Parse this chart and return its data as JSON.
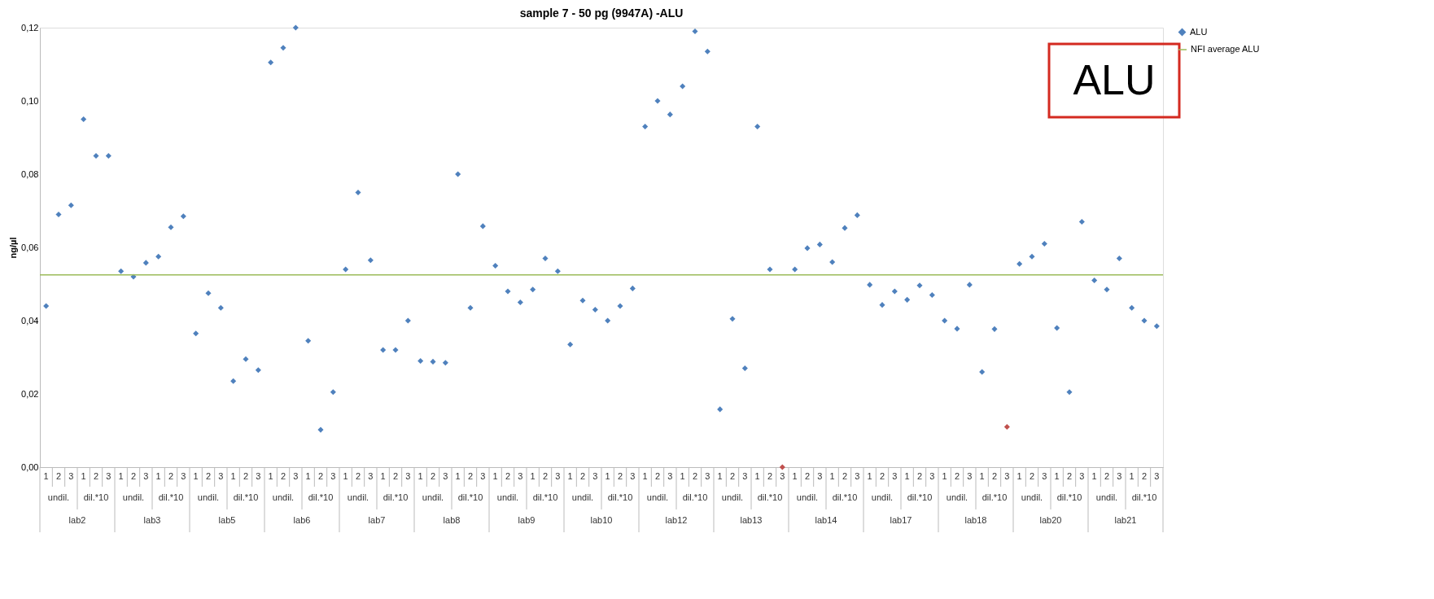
{
  "chart_data": {
    "type": "scatter",
    "title": "sample 7 - 50 pg (9947A) -ALU",
    "ylabel": "ng/µl",
    "categories": [
      "1",
      "2",
      "3",
      "1",
      "2",
      "3",
      "1",
      "2",
      "3",
      "1",
      "2",
      "3",
      "1",
      "2",
      "3",
      "1",
      "2",
      "3",
      "1",
      "2",
      "3",
      "1",
      "2",
      "3",
      "1",
      "2",
      "3",
      "1",
      "2",
      "3",
      "1",
      "2",
      "3",
      "1",
      "2",
      "3",
      "1",
      "2",
      "3",
      "1",
      "2",
      "3",
      "1",
      "2",
      "3",
      "1",
      "2",
      "3",
      "1",
      "2",
      "3",
      "1",
      "2",
      "3",
      "1",
      "2",
      "3",
      "1",
      "2",
      "3",
      "1",
      "2",
      "3",
      "1",
      "2",
      "3",
      "1",
      "2",
      "3",
      "1",
      "2",
      "3",
      "1",
      "2",
      "3",
      "1",
      "2",
      "3",
      "1",
      "2",
      "3",
      "1",
      "2",
      "3",
      "1",
      "2",
      "3",
      "1",
      "2",
      "3"
    ],
    "series": [
      {
        "name": "ALU",
        "color": "#4f81bd",
        "values": [
          0.044,
          0.069,
          0.0715,
          0.095,
          0.085,
          0.085,
          0.0535,
          0.052,
          0.0558,
          0.0575,
          0.0655,
          0.0685,
          0.0365,
          0.0475,
          0.0435,
          0.0235,
          0.0295,
          0.0265,
          0.1105,
          0.1145,
          0.12,
          0.0345,
          0.0102,
          0.0205,
          0.054,
          0.075,
          0.0565,
          0.032,
          0.032,
          0.04,
          0.029,
          0.0288,
          0.0285,
          0.08,
          0.0435,
          0.0658,
          0.055,
          0.048,
          0.045,
          0.0485,
          0.057,
          0.0535,
          0.0335,
          0.0455,
          0.043,
          0.04,
          0.044,
          0.0488,
          0.093,
          0.1,
          0.0963,
          0.104,
          0.119,
          0.1135,
          0.0158,
          0.0405,
          0.027,
          0.093,
          0.054,
          0.0,
          0.054,
          0.0598,
          0.0608,
          0.056,
          0.0653,
          0.0688,
          0.0498,
          0.0443,
          0.048,
          0.0457,
          0.0496,
          0.047,
          0.04,
          0.0378,
          0.0498,
          0.026,
          0.0377,
          0.011,
          0.0555,
          0.0575,
          0.061,
          0.038,
          0.0205,
          0.067,
          0.051,
          0.0485,
          0.057,
          0.0435,
          0.04,
          0.0385
        ],
        "colors": [
          "#4f81bd",
          "#4f81bd",
          "#4f81bd",
          "#4f81bd",
          "#4f81bd",
          "#4f81bd",
          "#4f81bd",
          "#4f81bd",
          "#4f81bd",
          "#4f81bd",
          "#4f81bd",
          "#4f81bd",
          "#4f81bd",
          "#4f81bd",
          "#4f81bd",
          "#4f81bd",
          "#4f81bd",
          "#4f81bd",
          "#4f81bd",
          "#4f81bd",
          "#4f81bd",
          "#4f81bd",
          "#4f81bd",
          "#4f81bd",
          "#4f81bd",
          "#4f81bd",
          "#4f81bd",
          "#4f81bd",
          "#4f81bd",
          "#4f81bd",
          "#4f81bd",
          "#4f81bd",
          "#4f81bd",
          "#4f81bd",
          "#4f81bd",
          "#4f81bd",
          "#4f81bd",
          "#4f81bd",
          "#4f81bd",
          "#4f81bd",
          "#4f81bd",
          "#4f81bd",
          "#4f81bd",
          "#4f81bd",
          "#4f81bd",
          "#4f81bd",
          "#4f81bd",
          "#4f81bd",
          "#4f81bd",
          "#4f81bd",
          "#4f81bd",
          "#4f81bd",
          "#4f81bd",
          "#4f81bd",
          "#4f81bd",
          "#4f81bd",
          "#4f81bd",
          "#4f81bd",
          "#4f81bd",
          "#c0504d",
          "#4f81bd",
          "#4f81bd",
          "#4f81bd",
          "#4f81bd",
          "#4f81bd",
          "#4f81bd",
          "#4f81bd",
          "#4f81bd",
          "#4f81bd",
          "#4f81bd",
          "#4f81bd",
          "#4f81bd",
          "#4f81bd",
          "#4f81bd",
          "#4f81bd",
          "#4f81bd",
          "#4f81bd",
          "#c0504d",
          "#4f81bd",
          "#4f81bd",
          "#4f81bd",
          "#4f81bd",
          "#4f81bd",
          "#4f81bd",
          "#4f81bd",
          "#4f81bd",
          "#4f81bd",
          "#4f81bd",
          "#4f81bd",
          "#4f81bd"
        ]
      }
    ],
    "ylim": [
      0,
      0.12
    ],
    "yticks": [
      {
        "value": 0,
        "label": "0,00"
      },
      {
        "value": 0.02,
        "label": "0,02"
      },
      {
        "value": 0.04,
        "label": "0,04"
      },
      {
        "value": 0.06,
        "label": "0,06"
      },
      {
        "value": 0.08,
        "label": "0,08"
      },
      {
        "value": 0.1,
        "label": "0,10"
      },
      {
        "value": 0.12,
        "label": "0,12"
      }
    ],
    "ref_lines": [
      {
        "axis": "y",
        "value": 0.0525,
        "label": "NFI average ALU",
        "color": "#9bbb59"
      }
    ],
    "grid": false,
    "legend": "right",
    "marker": "diamond",
    "annotations": [
      "ALU",
      "undil.",
      "dil.*10",
      "lab2",
      "undil.",
      "dil.*10",
      "lab3",
      "undil.",
      "dil.*10",
      "lab5",
      "undil.",
      "dil.*10",
      "lab6",
      "undil.",
      "dil.*10",
      "lab7",
      "undil.",
      "dil.*10",
      "lab8",
      "undil.",
      "dil.*10",
      "lab9",
      "undil.",
      "dil.*10",
      "lab10",
      "undil.",
      "dil.*10",
      "lab12",
      "undil.",
      "dil.*10",
      "lab13",
      "undil.",
      "dil.*10",
      "lab14",
      "undil.",
      "dil.*10",
      "lab17",
      "undil.",
      "dil.*10",
      "lab18",
      "undil.",
      "dil.*10",
      "lab20",
      "undil.",
      "dil.*10",
      "lab21"
    ]
  }
}
